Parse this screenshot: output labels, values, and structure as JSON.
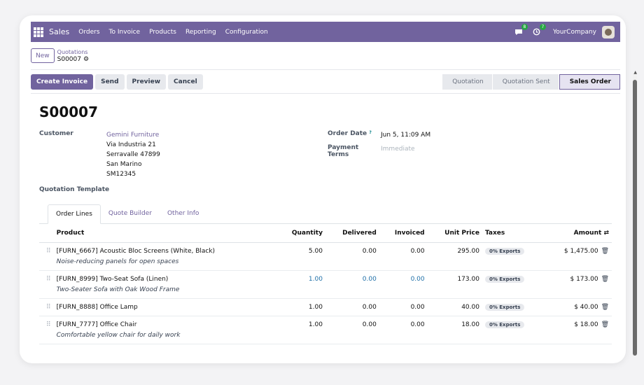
{
  "nav": {
    "app_name": "Sales",
    "menu": [
      "Orders",
      "To Invoice",
      "Products",
      "Reporting",
      "Configuration"
    ],
    "messages_badge": "8",
    "activities_badge": "7",
    "company": "YourCompany"
  },
  "control": {
    "new_label": "New",
    "breadcrumb_parent": "Quotations",
    "breadcrumb_current": "S00007"
  },
  "actions": {
    "create_invoice": "Create Invoice",
    "send": "Send",
    "preview": "Preview",
    "cancel": "Cancel"
  },
  "stages": [
    "Quotation",
    "Quotation Sent",
    "Sales Order"
  ],
  "order": {
    "name": "S00007",
    "customer_label": "Customer",
    "customer_name": "Gemini Furniture",
    "address": [
      "Via Industria 21",
      "Serravalle 47899",
      "San Marino",
      "SM12345"
    ],
    "order_date_label": "Order Date",
    "order_date_help": "?",
    "order_date": "Jun 5, 11:09 AM",
    "payment_terms_label": "Payment Terms",
    "payment_terms_placeholder": "Immediate",
    "template_label": "Quotation Template"
  },
  "tabs": [
    "Order Lines",
    "Quote Builder",
    "Other Info"
  ],
  "table": {
    "headers": {
      "product": "Product",
      "quantity": "Quantity",
      "delivered": "Delivered",
      "invoiced": "Invoiced",
      "unit_price": "Unit Price",
      "taxes": "Taxes",
      "amount": "Amount"
    },
    "rows": [
      {
        "product": "[FURN_6667] Acoustic Bloc Screens (White, Black)",
        "desc": "Noise-reducing panels for open spaces",
        "quantity": "5.00",
        "delivered": "0.00",
        "invoiced": "0.00",
        "unit_price": "295.00",
        "tax": "0% Exports",
        "amount": "$ 1,475.00"
      },
      {
        "product": "[FURN_8999] Two-Seat Sofa (Linen)",
        "desc": "Two-Seater Sofa with Oak Wood Frame",
        "quantity": "1.00",
        "delivered": "0.00",
        "invoiced": "0.00",
        "unit_price": "173.00",
        "tax": "0% Exports",
        "amount": "$ 173.00"
      },
      {
        "product": "[FURN_8888] Office Lamp",
        "desc": "",
        "quantity": "1.00",
        "delivered": "0.00",
        "invoiced": "0.00",
        "unit_price": "40.00",
        "tax": "0% Exports",
        "amount": "$ 40.00"
      },
      {
        "product": "[FURN_7777] Office Chair",
        "desc": "Comfortable yellow chair for daily work",
        "quantity": "1.00",
        "delivered": "0.00",
        "invoiced": "0.00",
        "unit_price": "18.00",
        "tax": "0% Exports",
        "amount": "$ 18.00"
      }
    ]
  }
}
